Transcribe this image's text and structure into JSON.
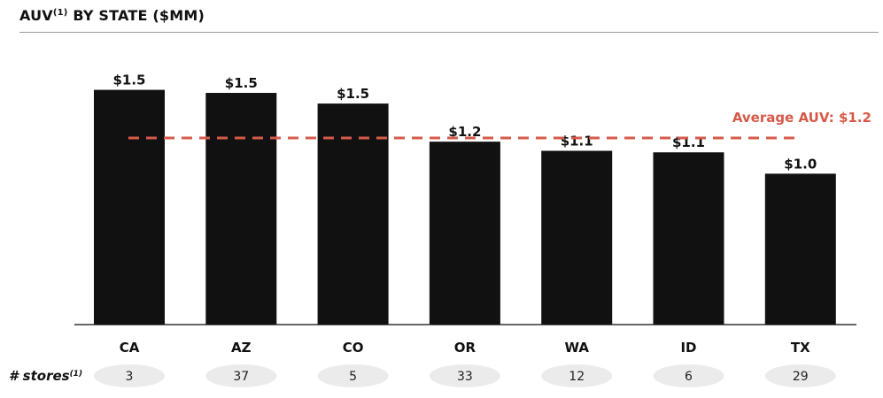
{
  "header": {
    "title_prefix": "AUV",
    "title_sup": "(1)",
    "title_suffix": " BY STATE ($MM)"
  },
  "stores_row": {
    "label": "# stores",
    "label_sup": "(1)"
  },
  "chart_data": {
    "type": "bar",
    "categories": [
      "CA",
      "AZ",
      "CO",
      "OR",
      "WA",
      "ID",
      "TX"
    ],
    "values": [
      1.54,
      1.52,
      1.45,
      1.2,
      1.14,
      1.13,
      0.99
    ],
    "value_labels": [
      "$1.5",
      "$1.5",
      "$1.5",
      "$1.2",
      "$1.1",
      "$1.1",
      "$1.0"
    ],
    "stores": [
      "3",
      "37",
      "5",
      "33",
      "12",
      "6",
      "29"
    ],
    "average": 1.2,
    "average_label": "Average AUV: $1.2",
    "ylim": [
      0,
      1.7
    ],
    "grid": false,
    "colors": {
      "bar": "#111111",
      "average": "#d65a4a",
      "pill": "#ebebeb",
      "axis": "#333333"
    }
  }
}
